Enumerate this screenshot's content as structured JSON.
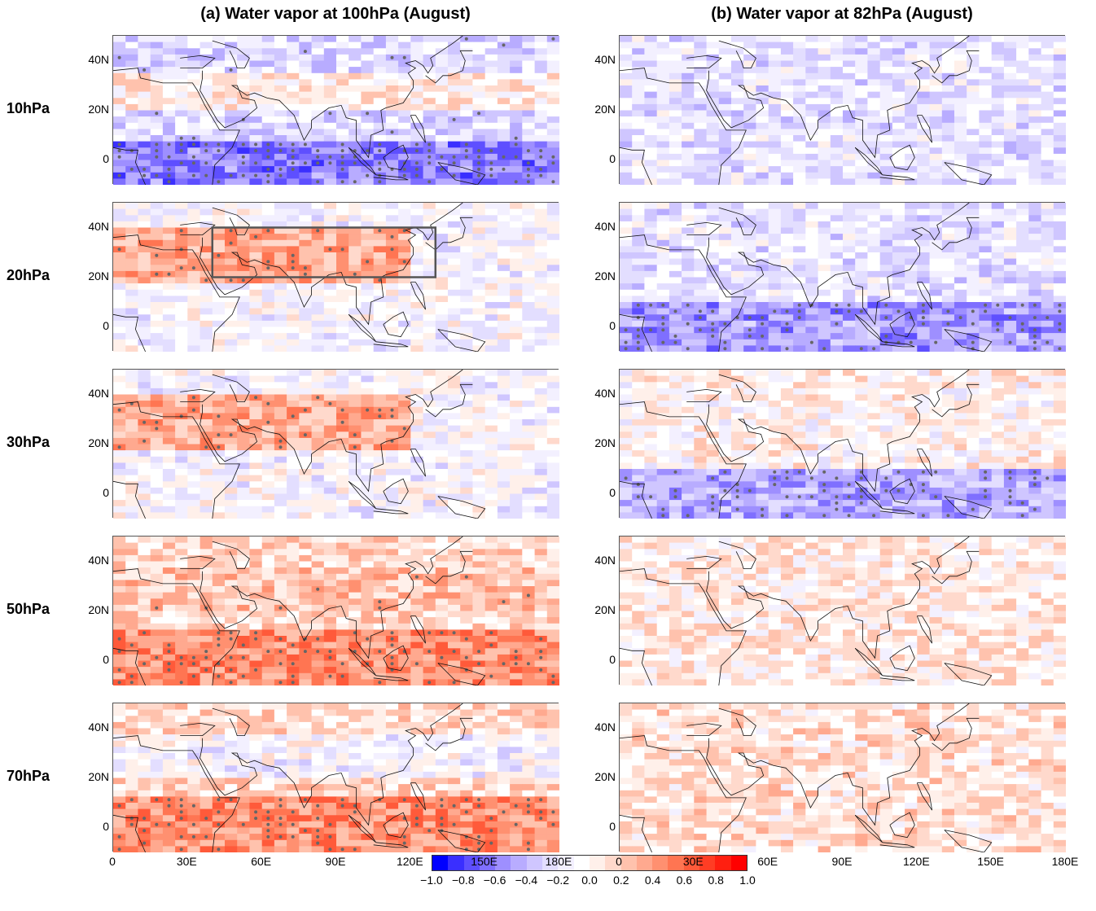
{
  "titles": {
    "left": "(a) Water vapor at 100hPa (August)",
    "right": "(b) Water vapor at 82hPa (August)"
  },
  "rows": [
    "10hPa",
    "20hPa",
    "30hPa",
    "50hPa",
    "70hPa"
  ],
  "lat_ticks": [
    "40N",
    "20N",
    "0"
  ],
  "lon_ticks": [
    "0",
    "30E",
    "60E",
    "90E",
    "120E",
    "150E",
    "180E"
  ],
  "colorbar": {
    "ticks": [
      "−1.0",
      "−0.8",
      "−0.6",
      "−0.4",
      "−0.2",
      "0.0",
      "0.2",
      "0.4",
      "0.6",
      "0.8",
      "1.0"
    ],
    "colors": [
      "#0000ff",
      "#3a2fff",
      "#5e4fff",
      "#7f6fff",
      "#9e8fff",
      "#b8acff",
      "#cfc6ff",
      "#e3deff",
      "#f3f0ff",
      "#ffffff",
      "#fff0ea",
      "#ffd9cc",
      "#ffc2ad",
      "#ffa98f",
      "#ff9070",
      "#ff7552",
      "#ff5a3a",
      "#ff3d24",
      "#ff1f10",
      "#ff0000"
    ]
  },
  "panels": [
    {
      "row": 0,
      "col": 0,
      "tone": -0.35
    },
    {
      "row": 0,
      "col": 1,
      "tone": -0.2
    },
    {
      "row": 1,
      "col": 0,
      "tone": 0.1,
      "box": true
    },
    {
      "row": 1,
      "col": 1,
      "tone": -0.3
    },
    {
      "row": 2,
      "col": 0,
      "tone": 0.2
    },
    {
      "row": 2,
      "col": 1,
      "tone": -0.25
    },
    {
      "row": 3,
      "col": 0,
      "tone": 0.35
    },
    {
      "row": 3,
      "col": 1,
      "tone": 0.05
    },
    {
      "row": 4,
      "col": 0,
      "tone": 0.3
    },
    {
      "row": 4,
      "col": 1,
      "tone": 0.1
    }
  ]
}
